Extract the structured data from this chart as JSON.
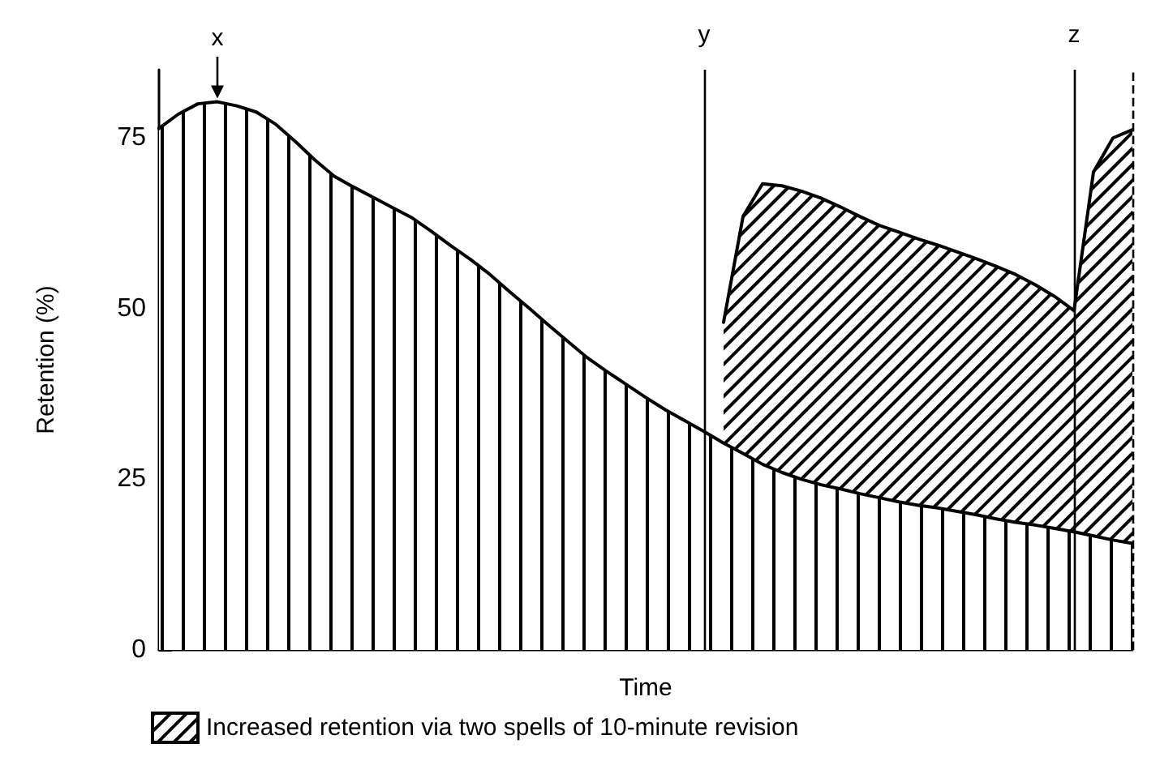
{
  "chart_data": {
    "type": "area",
    "xlabel": "Time",
    "ylabel": "Retention (%)",
    "ylim": [
      0,
      85
    ],
    "yticks": [
      0,
      25,
      50,
      75
    ],
    "grid": false,
    "legend": "bottom",
    "marker": "none",
    "categories": [
      null,
      null,
      null,
      null,
      null,
      null,
      null,
      null,
      null,
      null,
      null,
      null,
      null,
      null,
      null,
      null,
      null,
      null,
      null,
      null,
      null,
      null,
      null,
      null,
      null,
      null,
      null,
      null,
      null,
      null,
      null,
      null,
      null,
      null,
      null,
      null,
      null,
      null,
      null,
      null,
      null,
      null,
      null,
      null,
      null,
      null,
      null,
      null,
      null,
      null,
      null
    ],
    "series": [
      {
        "color": "#000000",
        "values": [
          76.4,
          78.5,
          80,
          80.3,
          79.7,
          78.8,
          77,
          74.5,
          71.8,
          69.4,
          67.8,
          66.3,
          64.8,
          63.3,
          61.3,
          59.2,
          57.2,
          55,
          52.5,
          50.1,
          47.6,
          45.2,
          42.8,
          40.8,
          38.9,
          37,
          35.2,
          33.6,
          32,
          30.3,
          28.8,
          27.2,
          26,
          25,
          24.2,
          23.6,
          22.9,
          22.3,
          21.7,
          21.2,
          20.8,
          20.3,
          19.8,
          19.2,
          18.7,
          18.3,
          17.8,
          17.3,
          16.7,
          16.1,
          15.6
        ]
      },
      {
        "name": "Increased retention via two spells of 10-minute revision",
        "color": "#000000",
        "values": [
          null,
          null,
          null,
          null,
          null,
          null,
          null,
          null,
          null,
          null,
          null,
          null,
          null,
          null,
          null,
          null,
          null,
          null,
          null,
          null,
          null,
          null,
          null,
          null,
          null,
          null,
          null,
          null,
          null,
          48,
          63.5,
          68.3,
          68,
          67.2,
          66.2,
          64.9,
          63.5,
          62.2,
          61.2,
          60.2,
          59.3,
          58.3,
          57.3,
          56.2,
          55,
          53.5,
          51.8,
          49.7,
          70,
          75,
          76.2
        ]
      }
    ],
    "annotations": [
      "x",
      "y",
      "z"
    ]
  }
}
